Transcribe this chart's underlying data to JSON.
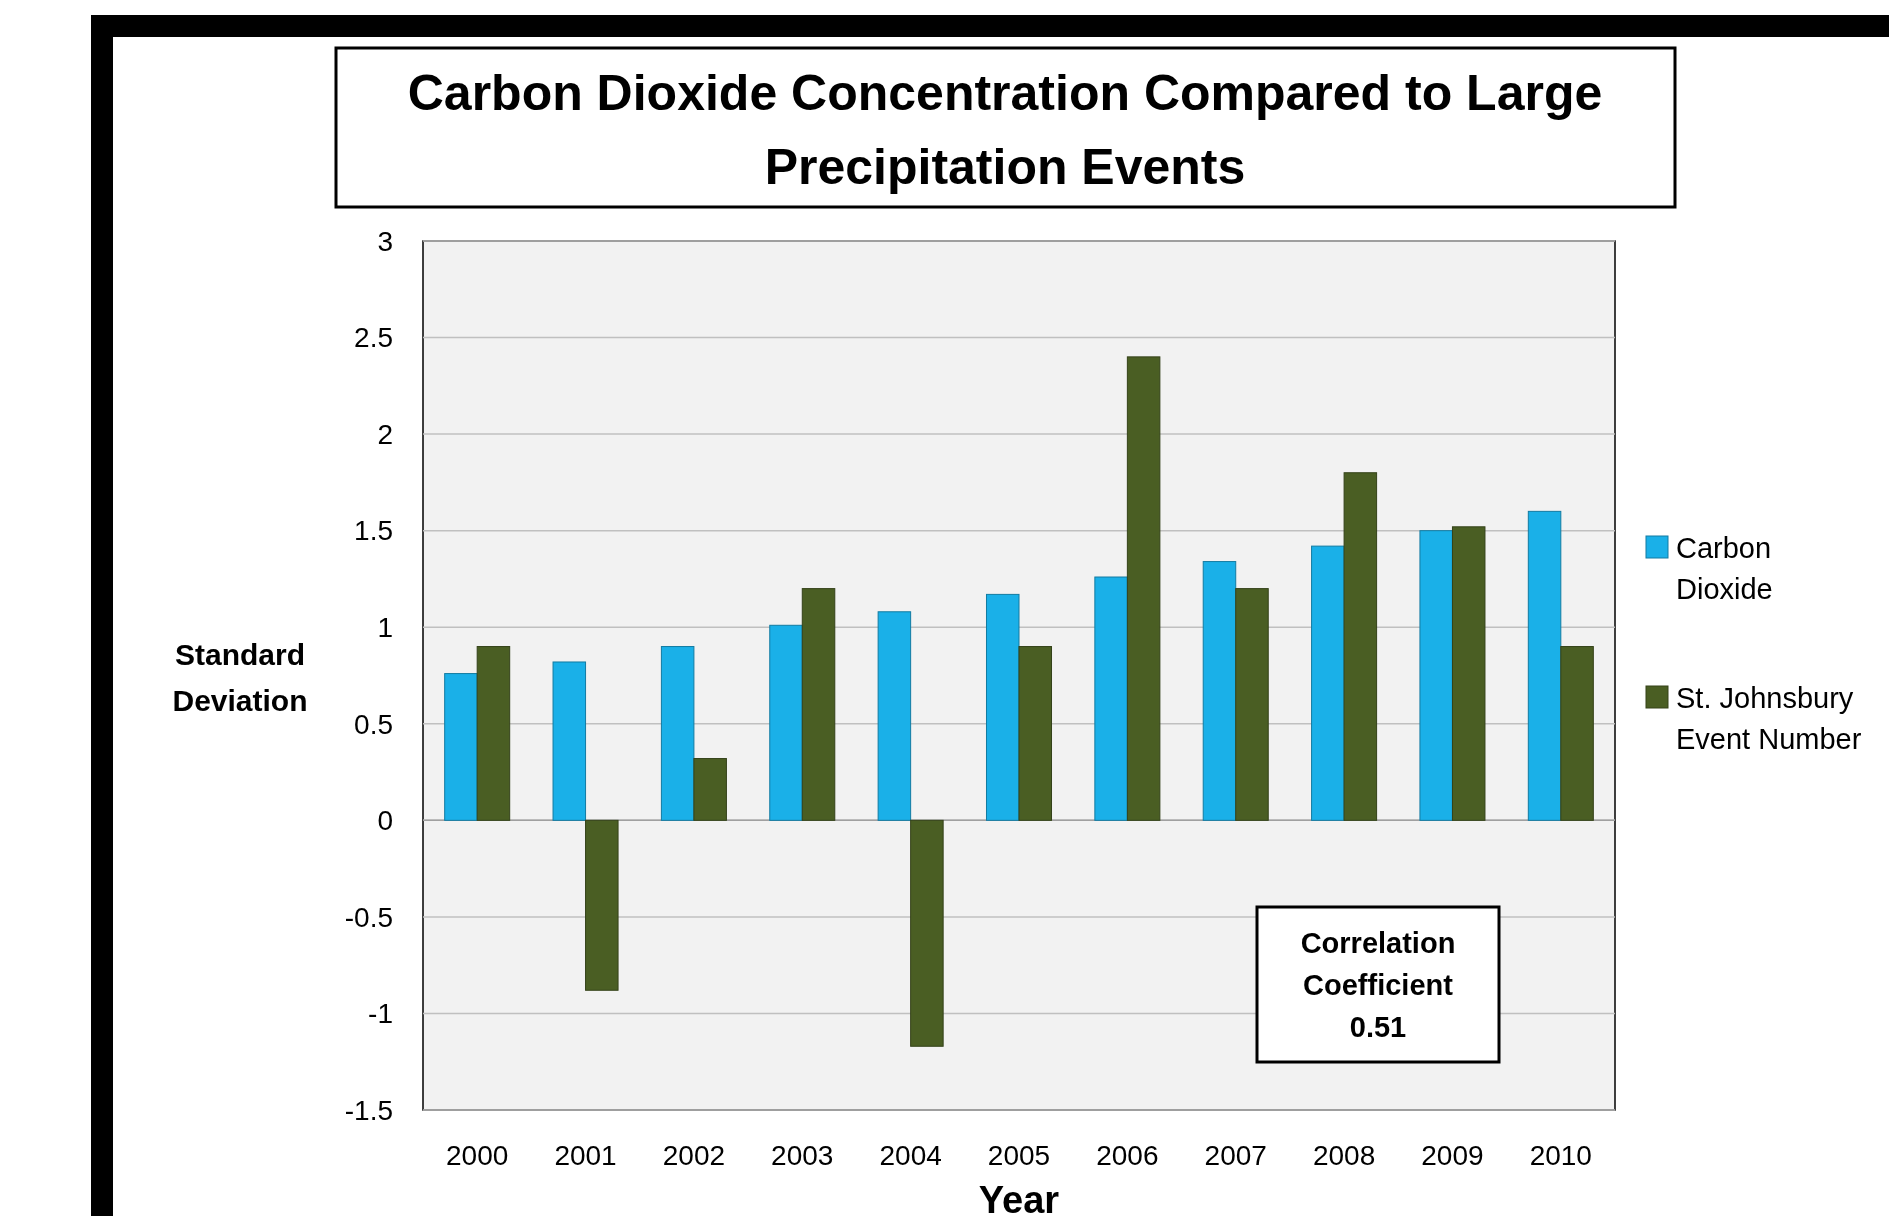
{
  "chart_data": {
    "type": "bar",
    "title": "Carbon Dioxide Concentration Compared to Large Precipitation Events",
    "xlabel": "Year",
    "ylabel": "Standard Deviation",
    "categories": [
      "2000",
      "2001",
      "2002",
      "2003",
      "2004",
      "2005",
      "2006",
      "2007",
      "2008",
      "2009",
      "2010"
    ],
    "series": [
      {
        "name": "Carbon Dioxide",
        "color": "#1ab0e8",
        "values": [
          0.76,
          0.82,
          0.9,
          1.01,
          1.08,
          1.17,
          1.26,
          1.34,
          1.42,
          1.5,
          1.6
        ]
      },
      {
        "name": "St. Johnsbury Event Number",
        "color": "#4a5e23",
        "values": [
          0.9,
          -0.88,
          0.32,
          1.2,
          -1.17,
          0.9,
          2.4,
          1.2,
          1.8,
          1.52,
          0.9
        ]
      }
    ],
    "ylim": [
      -1.5,
      3
    ],
    "yticks": [
      -1.5,
      -1,
      -0.5,
      0,
      0.5,
      1,
      1.5,
      2,
      2.5,
      3
    ],
    "grid": "y",
    "legend": "right",
    "annotations": [
      "Correlation Coefficient 0.51"
    ]
  }
}
